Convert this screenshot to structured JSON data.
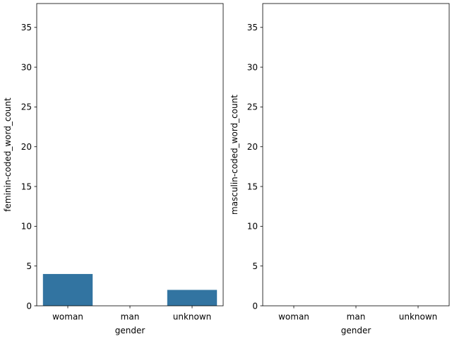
{
  "chart_data": [
    {
      "type": "bar",
      "categories": [
        "woman",
        "man",
        "unknown"
      ],
      "values": [
        4,
        0,
        2
      ],
      "xlabel": "gender",
      "ylabel": "feminin-coded_word_count",
      "ylim": [
        0,
        38
      ],
      "yticks": [
        0,
        5,
        10,
        15,
        20,
        25,
        30,
        35
      ],
      "bar_color": "#3274a1",
      "grid": false
    },
    {
      "type": "bar",
      "categories": [
        "woman",
        "man",
        "unknown"
      ],
      "values": [
        0,
        0,
        0
      ],
      "xlabel": "gender",
      "ylabel": "masculin-coded_word_count",
      "ylim": [
        0,
        38
      ],
      "yticks": [
        0,
        5,
        10,
        15,
        20,
        25,
        30,
        35
      ],
      "bar_color": "#3274a1",
      "grid": false
    }
  ]
}
